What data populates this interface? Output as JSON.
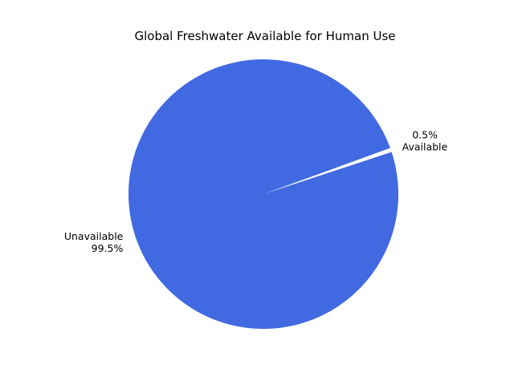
{
  "chart_data": {
    "type": "pie",
    "title": "Global Freshwater Available for Human Use",
    "slices": [
      {
        "label": "Available",
        "value": 0.5,
        "pct_text": "0.5%",
        "color": "#7FFFD4"
      },
      {
        "label": "Unavailable",
        "value": 99.5,
        "pct_text": "99.5%",
        "color": "#4169E1"
      }
    ],
    "start_angle_deg": 20,
    "direction": "counterclockwise",
    "legend": "none"
  }
}
